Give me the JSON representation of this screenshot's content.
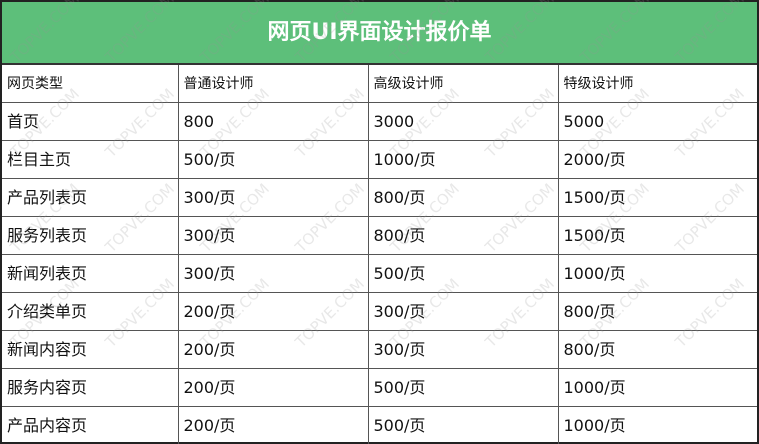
{
  "title": "网页UI界面设计报价单",
  "watermark": "TOPVE.COM",
  "colors": {
    "title_bg": "#5dbf7a",
    "title_text": "#ffffff"
  },
  "columns": [
    "网页类型",
    "普通设计师",
    "高级设计师",
    "特级设计师"
  ],
  "rows": [
    [
      "首页",
      "800",
      "3000",
      "5000"
    ],
    [
      "栏目主页",
      "500/页",
      "1000/页",
      "2000/页"
    ],
    [
      "产品列表页",
      "300/页",
      "800/页",
      "1500/页"
    ],
    [
      "服务列表页",
      "300/页",
      "800/页",
      "1500/页"
    ],
    [
      "新闻列表页",
      "300/页",
      "500/页",
      "1000/页"
    ],
    [
      "介绍类单页",
      "200/页",
      "300/页",
      "800/页"
    ],
    [
      "新闻内容页",
      "200/页",
      "300/页",
      "800/页"
    ],
    [
      "服务内容页",
      "200/页",
      "500/页",
      "1000/页"
    ],
    [
      "产品内容页",
      "200/页",
      "500/页",
      "1000/页"
    ]
  ]
}
